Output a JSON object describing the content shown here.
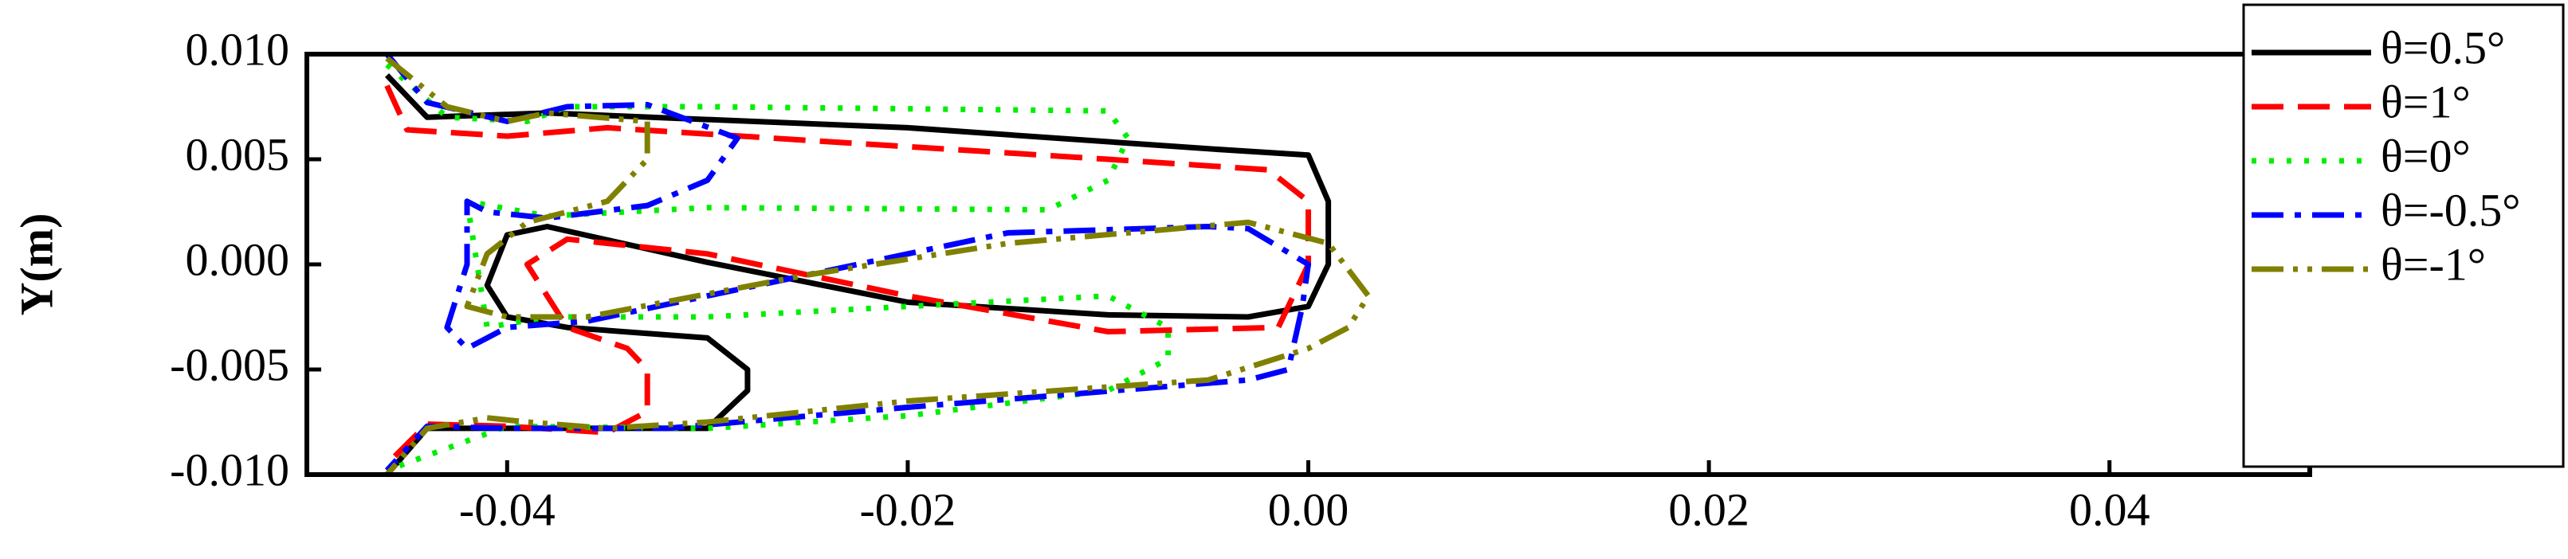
{
  "chart_data": {
    "type": "line",
    "ylabel": "Y(m)",
    "xlim": [
      -0.05,
      0.05
    ],
    "ylim": [
      -0.01,
      0.01
    ],
    "xticks": [
      -0.04,
      -0.02,
      {
        "value": 0,
        "label": "0.00"
      },
      0.02,
      0.04
    ],
    "yticks": [
      {
        "value": -0.01,
        "label": "-0.010"
      },
      {
        "value": -0.005,
        "label": "-0.005"
      },
      {
        "value": 0,
        "label": "0.000"
      },
      {
        "value": 0.005,
        "label": "0.005"
      },
      {
        "value": 0.01,
        "label": "0.010"
      }
    ],
    "legend": "top-right",
    "series": [
      {
        "name": "θ=0.5°",
        "color": "#000000",
        "dash": "solid",
        "x": [
          -0.046,
          -0.044,
          -0.038,
          -0.02,
          -0.005,
          0.0,
          0.001,
          0.001,
          0.0,
          -0.003,
          -0.01,
          -0.02,
          -0.03,
          -0.038,
          -0.04,
          -0.041,
          -0.04,
          -0.037,
          -0.03,
          -0.028,
          -0.028,
          -0.03,
          -0.036,
          -0.04,
          -0.044,
          -0.046
        ],
        "values": [
          0.009,
          0.007,
          0.0072,
          0.0065,
          0.0055,
          0.0052,
          0.003,
          0.0,
          -0.002,
          -0.0025,
          -0.0024,
          -0.0018,
          0.0001,
          0.0018,
          0.0014,
          -0.001,
          -0.0025,
          -0.003,
          -0.0035,
          -0.005,
          -0.006,
          -0.0078,
          -0.0078,
          -0.0078,
          -0.0078,
          -0.01
        ]
      },
      {
        "name": "θ=1°",
        "color": "#ff0000",
        "dash": "dashed",
        "x": [
          -0.046,
          -0.045,
          -0.04,
          -0.035,
          -0.01,
          -0.002,
          0.0,
          0.0,
          -0.0015,
          -0.01,
          -0.02,
          -0.03,
          -0.037,
          -0.039,
          -0.037,
          -0.034,
          -0.033,
          -0.033,
          -0.035,
          -0.04,
          -0.044,
          -0.046
        ],
        "values": [
          0.0085,
          0.0064,
          0.0061,
          0.0065,
          0.005,
          0.0045,
          0.003,
          0.0,
          -0.003,
          -0.0032,
          -0.0015,
          0.0005,
          0.0012,
          0.0,
          -0.003,
          -0.004,
          -0.005,
          -0.007,
          -0.008,
          -0.0077,
          -0.0076,
          -0.0095
        ]
      },
      {
        "name": "θ=0°",
        "color": "#00ee00",
        "dash": "dotted",
        "x": [
          -0.046,
          -0.043,
          -0.039,
          -0.037,
          -0.03,
          -0.02,
          -0.01,
          -0.009,
          -0.01,
          -0.013,
          -0.03,
          -0.038,
          -0.042,
          -0.041,
          -0.038,
          -0.03,
          -0.01,
          -0.007,
          -0.007,
          -0.01,
          -0.02,
          -0.03,
          -0.04,
          -0.046
        ],
        "values": [
          0.0095,
          0.007,
          0.0068,
          0.0075,
          0.0075,
          0.0074,
          0.0073,
          0.006,
          0.004,
          0.0026,
          0.0027,
          0.0023,
          0.003,
          -0.003,
          -0.0025,
          -0.0025,
          -0.0015,
          -0.003,
          -0.0045,
          -0.006,
          -0.0072,
          -0.0078,
          -0.0077,
          -0.0098
        ]
      },
      {
        "name": "θ=-0.5°",
        "color": "#0000ff",
        "dash": "dashdot",
        "x": [
          -0.046,
          -0.044,
          -0.04,
          -0.037,
          -0.033,
          -0.0285,
          -0.03,
          -0.033,
          -0.038,
          -0.041,
          -0.042,
          -0.042,
          -0.043,
          -0.042,
          -0.04,
          -0.036,
          -0.025,
          -0.015,
          -0.005,
          -0.003,
          0.0,
          -0.0003,
          -0.001,
          -0.003,
          -0.02,
          -0.032,
          -0.04,
          -0.044,
          -0.046
        ],
        "values": [
          0.01,
          0.0077,
          0.0068,
          0.0075,
          0.0076,
          0.006,
          0.004,
          0.0028,
          0.0022,
          0.0025,
          0.003,
          0.0,
          -0.003,
          -0.004,
          -0.003,
          -0.0027,
          -0.0005,
          0.0015,
          0.0018,
          0.0017,
          0.0,
          -0.002,
          -0.005,
          -0.0055,
          -0.0068,
          -0.0078,
          -0.0078,
          -0.0077,
          -0.0098
        ]
      },
      {
        "name": "θ=-1°",
        "color": "#808000",
        "dash": "dashdotdot",
        "x": [
          -0.046,
          -0.043,
          -0.04,
          -0.038,
          -0.033,
          -0.033,
          -0.035,
          -0.039,
          -0.041,
          -0.042,
          -0.04,
          -0.036,
          -0.025,
          -0.015,
          -0.003,
          0.001,
          0.003,
          0.002,
          0.0,
          -0.005,
          -0.02,
          -0.03,
          -0.035,
          -0.039,
          -0.041,
          -0.044,
          -0.046
        ],
        "values": [
          0.0098,
          0.0075,
          0.0068,
          0.0072,
          0.0068,
          0.005,
          0.003,
          0.002,
          0.0005,
          -0.002,
          -0.0025,
          -0.0025,
          -0.0005,
          0.001,
          0.002,
          0.001,
          -0.0015,
          -0.003,
          -0.004,
          -0.0055,
          -0.0065,
          -0.0075,
          -0.0078,
          -0.0075,
          -0.0073,
          -0.0078,
          -0.01
        ]
      }
    ]
  }
}
